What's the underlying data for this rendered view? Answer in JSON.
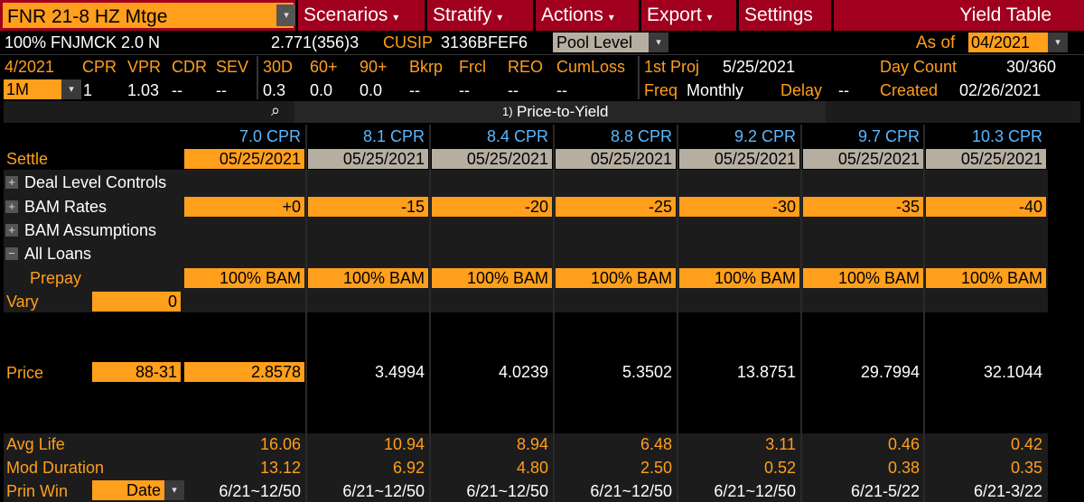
{
  "toolbar": {
    "security": "FNR 21-8 HZ Mtge",
    "scenarios": "Scenarios",
    "stratify": "Stratify",
    "actions": "Actions",
    "export": "Export",
    "settings": "Settings",
    "title": "Yield Table",
    "caret": "▾"
  },
  "info": {
    "description": "100% FNJMCK 2.0 N",
    "wac": "2.771(356)3",
    "cusip_label": "CUSIP",
    "cusip": "3136BFEF6",
    "pool_level": "Pool Level",
    "as_of_label": "As of",
    "as_of": "04/2021"
  },
  "stats_header": {
    "period": "4/2021",
    "cpr": "CPR",
    "vpr": "VPR",
    "cdr": "CDR",
    "sev": "SEV",
    "d30": "30D",
    "d60": "60+",
    "d90": "90+",
    "bkrp": "Bkrp",
    "frcl": "Frcl",
    "reo": "REO",
    "cumloss": "CumLoss",
    "first_proj_label": "1st Proj",
    "first_proj": "5/25/2021",
    "day_count_label": "Day Count",
    "day_count": "30/360"
  },
  "stats_values": {
    "period": "1M",
    "cpr": "1",
    "vpr": "1.03",
    "cdr": "--",
    "sev": "--",
    "d30": "0.3",
    "d60": "0.0",
    "d90": "0.0",
    "bkrp": "--",
    "frcl": "--",
    "reo": "--",
    "cumloss": "--",
    "freq_label": "Freq",
    "freq": "Monthly",
    "delay_label": "Delay",
    "delay": "--",
    "created_label": "Created",
    "created": "02/26/2021"
  },
  "section": {
    "mode_icon": "1)",
    "mode": "Price-to-Yield"
  },
  "table": {
    "scenarios": [
      "7.0 CPR",
      "8.1 CPR",
      "8.4 CPR",
      "8.8 CPR",
      "9.2 CPR",
      "9.7 CPR",
      "10.3 CPR"
    ],
    "settle_label": "Settle",
    "settle": [
      "05/25/2021",
      "05/25/2021",
      "05/25/2021",
      "05/25/2021",
      "05/25/2021",
      "05/25/2021",
      "05/25/2021"
    ],
    "deal_level": "Deal Level Controls",
    "bam_rates": "BAM Rates",
    "bam_rates_values": [
      "+0",
      "-15",
      "-20",
      "-25",
      "-30",
      "-35",
      "-40"
    ],
    "bam_assumptions": "BAM Assumptions",
    "all_loans": "All Loans",
    "prepay_label": "Prepay",
    "prepay": [
      "100% BAM",
      "100% BAM",
      "100% BAM",
      "100% BAM",
      "100% BAM",
      "100% BAM",
      "100% BAM"
    ],
    "vary_label": "Vary",
    "vary": "0",
    "price_label": "Price",
    "price": "88-31",
    "yields": [
      "2.8578",
      "3.4994",
      "4.0239",
      "5.3502",
      "13.8751",
      "29.7994",
      "32.1044"
    ],
    "avg_life_label": "Avg Life",
    "avg_life": [
      "16.06",
      "10.94",
      "8.94",
      "6.48",
      "3.11",
      "0.46",
      "0.42"
    ],
    "mod_duration_label": "Mod Duration",
    "mod_duration": [
      "13.12",
      "6.92",
      "4.80",
      "2.50",
      "0.52",
      "0.38",
      "0.35"
    ],
    "prin_win_label": "Prin Win",
    "prin_win_mode": "Date",
    "prin_win": [
      "6/21~12/50",
      "6/21~12/50",
      "6/21~12/50",
      "6/21~12/50",
      "6/21~12/50",
      "6/21-5/22",
      "6/21-3/22"
    ]
  },
  "colors": {
    "toolbar_bg": "#a0001e",
    "accent_orange": "#ff9f1c",
    "scenario_blue": "#5ab7ff",
    "gray_cell": "#b6aea0"
  }
}
